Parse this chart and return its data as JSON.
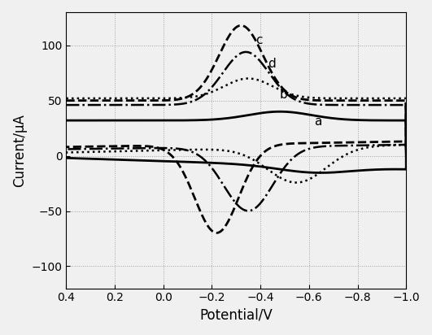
{
  "title": "",
  "xlabel": "Potential/V",
  "ylabel": "Current/μA",
  "xlim": [
    0.4,
    -1.0
  ],
  "ylim": [
    -120,
    130
  ],
  "yticks": [
    -100,
    -50,
    0,
    50,
    100
  ],
  "xticks": [
    0.4,
    0.2,
    0.0,
    -0.2,
    -0.4,
    -0.6,
    -0.8,
    -1.0
  ],
  "background": "#f0f0f0",
  "curve_labels": [
    "a",
    "b",
    "c",
    "d"
  ],
  "curve_styles": [
    {
      "linestyle": "solid",
      "linewidth": 2.0,
      "color": "#000000"
    },
    {
      "linestyle": "dotted",
      "linewidth": 1.8,
      "color": "#000000"
    },
    {
      "linestyle": "dashed",
      "linewidth": 2.0,
      "color": "#000000"
    },
    {
      "linestyle": "dashdot",
      "linewidth": 1.8,
      "color": "#000000"
    }
  ]
}
